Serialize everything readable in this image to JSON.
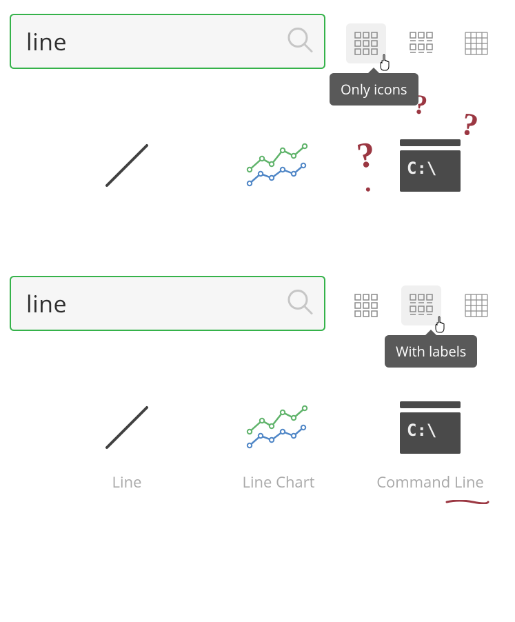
{
  "colors": {
    "search_border": "#35b24a",
    "search_bg": "#f6f6f6",
    "search_text": "#2f2f2f",
    "mag_stroke": "#c6c6c6",
    "toggle_active_bg": "#f0f0f0",
    "toggle_stroke": "#8a8a8a",
    "tooltip_bg": "#595959",
    "tooltip_text": "#ffffff",
    "label_text": "#a9a9a9",
    "line_icon": "#404040",
    "chart_green": "#5fb36a",
    "chart_blue": "#4f86c6",
    "cmd_bg": "#4a4a4a",
    "cmd_text": "#eeeeee",
    "annotation_red": "#9b3742"
  },
  "panel1": {
    "search_value": "line",
    "tooltip": "Only icons",
    "active_toggle": 0,
    "show_labels": false,
    "show_questions": true
  },
  "panel2": {
    "search_value": "line",
    "tooltip": "With labels",
    "active_toggle": 1,
    "show_labels": true,
    "show_questions": false
  },
  "toggles": [
    {
      "name": "view-only-icons"
    },
    {
      "name": "view-with-labels"
    },
    {
      "name": "view-grid"
    }
  ],
  "results": [
    {
      "name": "result-line",
      "label": "Line",
      "icon": "line"
    },
    {
      "name": "result-line-chart",
      "label": "Line Chart",
      "icon": "line-chart"
    },
    {
      "name": "result-command-line",
      "label": "Command Line",
      "icon": "command-line"
    }
  ],
  "annotations": {
    "q1": {
      "size": 52,
      "rotate": -8
    },
    "q2": {
      "size": 40,
      "rotate": 6
    },
    "q3": {
      "size": 46,
      "rotate": 12
    },
    "dot": {
      "size": 22
    }
  }
}
